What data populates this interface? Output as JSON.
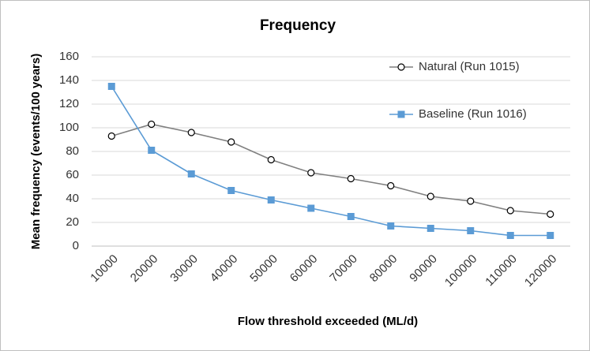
{
  "chart_data": {
    "type": "line",
    "title": "Frequency",
    "x_label": "Flow threshold exceeded (ML/d)",
    "y_label": "Mean frequency (events/100 years)",
    "categories": [
      "10000",
      "20000",
      "30000",
      "40000",
      "50000",
      "60000",
      "70000",
      "80000",
      "90000",
      "100000",
      "110000",
      "120000"
    ],
    "series": [
      {
        "name": "Natural (Run 1015)",
        "color": "#7f7f7f",
        "marker": "circle",
        "values": [
          93,
          103,
          96,
          88,
          73,
          62,
          57,
          51,
          42,
          38,
          30,
          27
        ]
      },
      {
        "name": "Baseline (Run 1016)",
        "color": "#5b9bd5",
        "marker": "square",
        "values": [
          135,
          81,
          61,
          47,
          39,
          32,
          25,
          17,
          15,
          13,
          9,
          9
        ]
      }
    ],
    "ylim": [
      0,
      160
    ],
    "yticks": [
      0,
      20,
      40,
      60,
      80,
      100,
      120,
      140,
      160
    ],
    "grid": true
  }
}
